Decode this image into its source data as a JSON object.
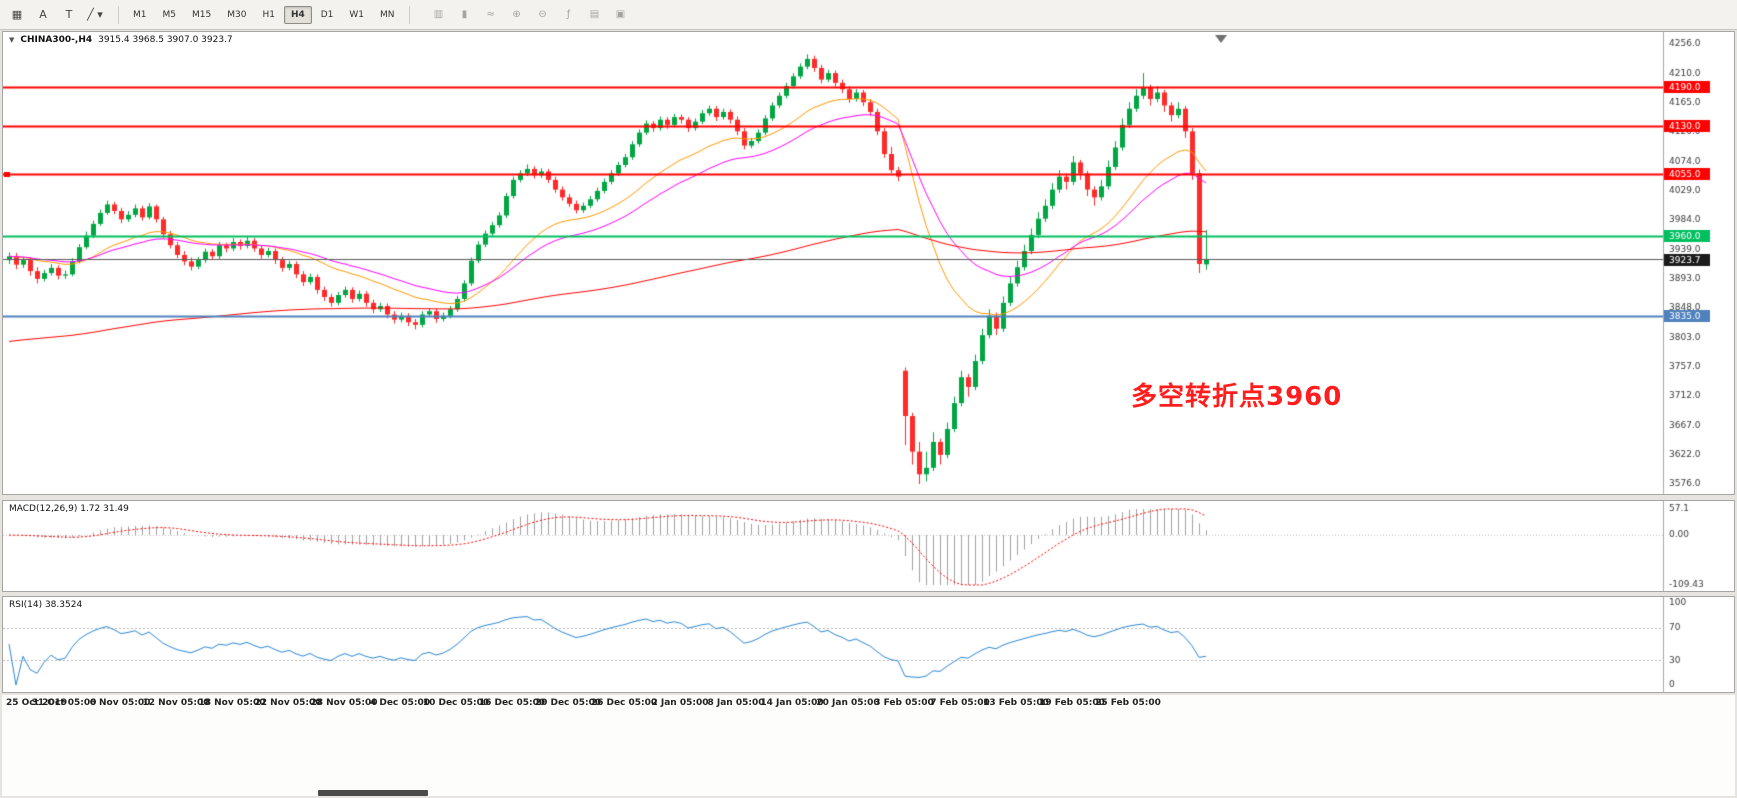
{
  "toolbar": {
    "left_tools": [
      {
        "name": "tick-chart-icon",
        "glyph": "▦"
      },
      {
        "name": "text-annotation-tool",
        "glyph": "A"
      },
      {
        "name": "text-label-tool",
        "glyph": "T"
      },
      {
        "name": "drawing-tools-dropdown",
        "glyph": "╱ ▾"
      }
    ],
    "timeframes": [
      {
        "label": "M1",
        "active": false
      },
      {
        "label": "M5",
        "active": false
      },
      {
        "label": "M15",
        "active": false
      },
      {
        "label": "M30",
        "active": false
      },
      {
        "label": "H1",
        "active": false
      },
      {
        "label": "H4",
        "active": true
      },
      {
        "label": "D1",
        "active": false
      },
      {
        "label": "W1",
        "active": false
      },
      {
        "label": "MN",
        "active": false
      }
    ],
    "right_tools": [
      {
        "name": "bar-chart-icon",
        "glyph": "▥"
      },
      {
        "name": "candlestick-chart-icon",
        "glyph": "▮"
      },
      {
        "name": "line-chart-icon",
        "glyph": "≈"
      },
      {
        "name": "zoom-in-icon",
        "glyph": "⊕"
      },
      {
        "name": "zoom-out-icon",
        "glyph": "⊖"
      },
      {
        "name": "indicators-icon",
        "glyph": "ƒ"
      },
      {
        "name": "time-periods-icon",
        "glyph": "▤"
      },
      {
        "name": "templates-icon",
        "glyph": "▣"
      }
    ]
  },
  "chart": {
    "symbol_title": "CHINA300-,H4",
    "ohlc": "3915.4 3968.5 3907.0 3923.7",
    "annotation": "多空转折点3960",
    "price_axis": [
      "4256.0",
      "4210.0",
      "4165.0",
      "4120.0",
      "4074.0",
      "4029.0",
      "3984.0",
      "3939.0",
      "3893.0",
      "3848.0",
      "3803.0",
      "3757.0",
      "3712.0",
      "3667.0",
      "3622.0",
      "3576.0"
    ]
  },
  "macd": {
    "label": "MACD(12,26,9) 1.72 31.49",
    "axis": [
      "57.1",
      "0.00",
      "-109.43"
    ]
  },
  "rsi": {
    "label": "RSI(14) 38.3524",
    "axis": [
      "100",
      "70",
      "30",
      "0"
    ]
  },
  "chart_data": {
    "type": "candlestick",
    "symbol": "CHINA300-",
    "timeframe": "H4",
    "ohlc_current": {
      "open": 3915.4,
      "high": 3968.5,
      "low": 3907.0,
      "close": 3923.7
    },
    "y_range": [
      3576,
      4256
    ],
    "bars_per_label": 8,
    "x_labels": [
      "25 Oct 2019",
      "31 Oct 05:00",
      "6 Nov 05:00",
      "12 Nov 05:00",
      "18 Nov 05:00",
      "22 Nov 05:00",
      "28 Nov 05:00",
      "4 Dec 05:00",
      "10 Dec 05:00",
      "16 Dec 05:00",
      "20 Dec 05:00",
      "26 Dec 05:00",
      "2 Jan 05:00",
      "8 Jan 05:00",
      "14 Jan 05:00",
      "20 Jan 05:00",
      "3 Feb 05:00",
      "7 Feb 05:00",
      "13 Feb 05:00",
      "19 Feb 05:00",
      "25 Feb 05:00"
    ],
    "colors": {
      "up": "#00a642",
      "down": "#ff2a2a"
    },
    "overlays": [
      {
        "name": "ma-fast",
        "period": 21,
        "color": "#ff9900"
      },
      {
        "name": "ma-mid",
        "period": 34,
        "color": "#ff00ff"
      },
      {
        "name": "ma-slow",
        "period": 200,
        "color": "#ff0000",
        "seed": 3795
      }
    ],
    "hlines": [
      {
        "value": 4190.0,
        "label": "4190.0",
        "color": "#ff0000",
        "width": 2
      },
      {
        "value": 4130.0,
        "label": "4130.0",
        "color": "#ff0000",
        "width": 2
      },
      {
        "value": 4055.0,
        "label": "4055.0",
        "color": "#ff0000",
        "width": 2
      },
      {
        "value": 3960.0,
        "label": "3960.0",
        "color": "#00bf5f",
        "width": 2
      },
      {
        "value": 3835.0,
        "label": "3835.0",
        "color": "#4f81bd",
        "width": 2
      }
    ],
    "current_price": {
      "value": 3923.7,
      "label": "3923.7",
      "color": "#1b1b1b"
    },
    "indicators": [
      {
        "name": "MACD",
        "params": [
          12,
          26,
          9
        ],
        "last_values": [
          1.72,
          31.49
        ],
        "histogram_color": "#a0a0a0",
        "signal_color": "#ff0000",
        "axis": [
          57.1,
          0,
          -109.43
        ]
      },
      {
        "name": "RSI",
        "params": [
          14
        ],
        "last_value": 38.3524,
        "color": "#2e86d2",
        "levels": [
          70,
          30
        ],
        "axis": [
          100,
          70,
          30,
          0
        ]
      }
    ],
    "candles": [
      [
        3922,
        3934,
        3916,
        3928
      ],
      [
        3928,
        3933,
        3908,
        3915
      ],
      [
        3915,
        3927,
        3910,
        3922
      ],
      [
        3922,
        3926,
        3898,
        3905
      ],
      [
        3905,
        3911,
        3886,
        3893
      ],
      [
        3893,
        3907,
        3889,
        3902
      ],
      [
        3902,
        3916,
        3898,
        3910
      ],
      [
        3910,
        3914,
        3892,
        3898
      ],
      [
        3898,
        3906,
        3893,
        3900
      ],
      [
        3900,
        3925,
        3897,
        3920
      ],
      [
        3920,
        3947,
        3917,
        3942
      ],
      [
        3942,
        3966,
        3939,
        3960
      ],
      [
        3960,
        3983,
        3956,
        3978
      ],
      [
        3978,
        4000,
        3975,
        3995
      ],
      [
        3995,
        4014,
        3992,
        4008
      ],
      [
        4008,
        4012,
        3993,
        3998
      ],
      [
        3998,
        4003,
        3979,
        3985
      ],
      [
        3985,
        3998,
        3981,
        3992
      ],
      [
        3992,
        4008,
        3988,
        4002
      ],
      [
        4002,
        4006,
        3983,
        3988
      ],
      [
        3988,
        4010,
        3985,
        4005
      ],
      [
        4005,
        4008,
        3980,
        3985
      ],
      [
        3985,
        3989,
        3956,
        3962
      ],
      [
        3962,
        3967,
        3940,
        3945
      ],
      [
        3945,
        3950,
        3925,
        3930
      ],
      [
        3930,
        3936,
        3914,
        3920
      ],
      [
        3920,
        3926,
        3906,
        3912
      ],
      [
        3912,
        3927,
        3908,
        3922
      ],
      [
        3922,
        3940,
        3918,
        3935
      ],
      [
        3935,
        3939,
        3922,
        3928
      ],
      [
        3928,
        3950,
        3924,
        3945
      ],
      [
        3945,
        3949,
        3934,
        3940
      ],
      [
        3940,
        3956,
        3936,
        3950
      ],
      [
        3950,
        3954,
        3938,
        3944
      ],
      [
        3944,
        3958,
        3940,
        3952
      ],
      [
        3952,
        3956,
        3935,
        3940
      ],
      [
        3940,
        3945,
        3924,
        3930
      ],
      [
        3930,
        3941,
        3926,
        3936
      ],
      [
        3936,
        3940,
        3916,
        3922
      ],
      [
        3922,
        3927,
        3904,
        3910
      ],
      [
        3910,
        3921,
        3906,
        3916
      ],
      [
        3916,
        3920,
        3894,
        3900
      ],
      [
        3900,
        3905,
        3882,
        3888
      ],
      [
        3888,
        3901,
        3884,
        3896
      ],
      [
        3896,
        3900,
        3870,
        3876
      ],
      [
        3876,
        3881,
        3859,
        3865
      ],
      [
        3865,
        3870,
        3850,
        3856
      ],
      [
        3856,
        3873,
        3852,
        3868
      ],
      [
        3868,
        3881,
        3864,
        3876
      ],
      [
        3876,
        3880,
        3856,
        3862
      ],
      [
        3862,
        3875,
        3858,
        3870
      ],
      [
        3870,
        3874,
        3850,
        3856
      ],
      [
        3856,
        3861,
        3840,
        3846
      ],
      [
        3846,
        3856,
        3842,
        3851
      ],
      [
        3851,
        3855,
        3832,
        3838
      ],
      [
        3838,
        3843,
        3824,
        3830
      ],
      [
        3830,
        3841,
        3826,
        3836
      ],
      [
        3836,
        3840,
        3820,
        3826
      ],
      [
        3826,
        3831,
        3815,
        3822
      ],
      [
        3822,
        3843,
        3818,
        3838
      ],
      [
        3838,
        3848,
        3834,
        3843
      ],
      [
        3843,
        3847,
        3825,
        3831
      ],
      [
        3831,
        3841,
        3827,
        3836
      ],
      [
        3836,
        3851,
        3832,
        3846
      ],
      [
        3846,
        3867,
        3842,
        3862
      ],
      [
        3862,
        3891,
        3858,
        3886
      ],
      [
        3886,
        3926,
        3882,
        3921
      ],
      [
        3921,
        3951,
        3917,
        3946
      ],
      [
        3946,
        3968,
        3942,
        3963
      ],
      [
        3963,
        3981,
        3959,
        3976
      ],
      [
        3976,
        3996,
        3972,
        3991
      ],
      [
        3991,
        4026,
        3987,
        4021
      ],
      [
        4021,
        4051,
        4017,
        4046
      ],
      [
        4046,
        4061,
        4042,
        4056
      ],
      [
        4056,
        4070,
        4052,
        4063
      ],
      [
        4063,
        4067,
        4048,
        4053
      ],
      [
        4053,
        4064,
        4049,
        4059
      ],
      [
        4059,
        4063,
        4041,
        4046
      ],
      [
        4046,
        4051,
        4026,
        4031
      ],
      [
        4031,
        4036,
        4014,
        4019
      ],
      [
        4019,
        4024,
        4004,
        4009
      ],
      [
        4009,
        4014,
        3994,
        3999
      ],
      [
        3999,
        4011,
        3995,
        4006
      ],
      [
        4006,
        4021,
        4002,
        4016
      ],
      [
        4016,
        4034,
        4012,
        4029
      ],
      [
        4029,
        4048,
        4025,
        4043
      ],
      [
        4043,
        4061,
        4039,
        4056
      ],
      [
        4056,
        4074,
        4052,
        4069
      ],
      [
        4069,
        4086,
        4065,
        4081
      ],
      [
        4081,
        4106,
        4077,
        4101
      ],
      [
        4101,
        4124,
        4097,
        4119
      ],
      [
        4119,
        4138,
        4115,
        4133
      ],
      [
        4133,
        4137,
        4120,
        4126
      ],
      [
        4126,
        4144,
        4122,
        4139
      ],
      [
        4139,
        4143,
        4125,
        4131
      ],
      [
        4131,
        4148,
        4127,
        4143
      ],
      [
        4143,
        4147,
        4133,
        4139
      ],
      [
        4139,
        4143,
        4120,
        4126
      ],
      [
        4126,
        4141,
        4122,
        4136
      ],
      [
        4136,
        4154,
        4132,
        4149
      ],
      [
        4149,
        4161,
        4145,
        4156
      ],
      [
        4156,
        4160,
        4137,
        4143
      ],
      [
        4143,
        4156,
        4139,
        4151
      ],
      [
        4151,
        4155,
        4133,
        4139
      ],
      [
        4139,
        4144,
        4115,
        4121
      ],
      [
        4121,
        4126,
        4093,
        4099
      ],
      [
        4099,
        4111,
        4095,
        4106
      ],
      [
        4106,
        4124,
        4102,
        4119
      ],
      [
        4119,
        4146,
        4115,
        4141
      ],
      [
        4141,
        4166,
        4137,
        4161
      ],
      [
        4161,
        4181,
        4157,
        4176
      ],
      [
        4176,
        4196,
        4172,
        4191
      ],
      [
        4191,
        4211,
        4187,
        4206
      ],
      [
        4206,
        4226,
        4202,
        4221
      ],
      [
        4221,
        4240,
        4217,
        4233
      ],
      [
        4233,
        4238,
        4213,
        4219
      ],
      [
        4219,
        4224,
        4195,
        4201
      ],
      [
        4201,
        4216,
        4197,
        4211
      ],
      [
        4211,
        4215,
        4190,
        4196
      ],
      [
        4196,
        4201,
        4180,
        4186
      ],
      [
        4186,
        4191,
        4165,
        4171
      ],
      [
        4171,
        4186,
        4167,
        4181
      ],
      [
        4181,
        4185,
        4160,
        4166
      ],
      [
        4166,
        4171,
        4145,
        4151
      ],
      [
        4151,
        4156,
        4115,
        4121
      ],
      [
        4121,
        4126,
        4080,
        4086
      ],
      [
        4086,
        4097,
        4056,
        4061
      ],
      [
        4061,
        4066,
        4044,
        4051
      ],
      [
        3751,
        3756,
        3636,
        3681
      ],
      [
        3681,
        3686,
        3606,
        3626
      ],
      [
        3626,
        3641,
        3576,
        3591
      ],
      [
        3591,
        3626,
        3580,
        3601
      ],
      [
        3601,
        3656,
        3596,
        3641
      ],
      [
        3641,
        3646,
        3606,
        3621
      ],
      [
        3621,
        3671,
        3616,
        3661
      ],
      [
        3661,
        3711,
        3656,
        3701
      ],
      [
        3701,
        3751,
        3696,
        3741
      ],
      [
        3741,
        3746,
        3711,
        3726
      ],
      [
        3726,
        3776,
        3721,
        3766
      ],
      [
        3766,
        3816,
        3761,
        3806
      ],
      [
        3806,
        3846,
        3801,
        3836
      ],
      [
        3836,
        3841,
        3806,
        3816
      ],
      [
        3816,
        3866,
        3811,
        3856
      ],
      [
        3856,
        3896,
        3851,
        3886
      ],
      [
        3886,
        3921,
        3881,
        3911
      ],
      [
        3911,
        3946,
        3906,
        3936
      ],
      [
        3936,
        3971,
        3931,
        3961
      ],
      [
        3961,
        3996,
        3956,
        3986
      ],
      [
        3986,
        4016,
        3981,
        4006
      ],
      [
        4006,
        4041,
        4001,
        4031
      ],
      [
        4031,
        4061,
        4026,
        4051
      ],
      [
        4051,
        4056,
        4031,
        4043
      ],
      [
        4043,
        4083,
        4038,
        4073
      ],
      [
        4073,
        4077,
        4046,
        4056
      ],
      [
        4056,
        4060,
        4021,
        4031
      ],
      [
        4031,
        4036,
        4006,
        4019
      ],
      [
        4019,
        4046,
        4014,
        4036
      ],
      [
        4036,
        4076,
        4031,
        4066
      ],
      [
        4066,
        4106,
        4061,
        4096
      ],
      [
        4096,
        4141,
        4091,
        4131
      ],
      [
        4131,
        4166,
        4126,
        4156
      ],
      [
        4156,
        4186,
        4151,
        4176
      ],
      [
        4176,
        4211,
        4171,
        4189
      ],
      [
        4189,
        4193,
        4161,
        4171
      ],
      [
        4171,
        4191,
        4166,
        4181
      ],
      [
        4181,
        4185,
        4151,
        4161
      ],
      [
        4161,
        4166,
        4136,
        4146
      ],
      [
        4146,
        4166,
        4141,
        4156
      ],
      [
        4156,
        4160,
        4111,
        4121
      ],
      [
        4121,
        4126,
        4046,
        4056
      ],
      [
        4056,
        4062,
        3902,
        3916
      ],
      [
        3915.4,
        3968.5,
        3907.0,
        3923.7
      ]
    ]
  }
}
